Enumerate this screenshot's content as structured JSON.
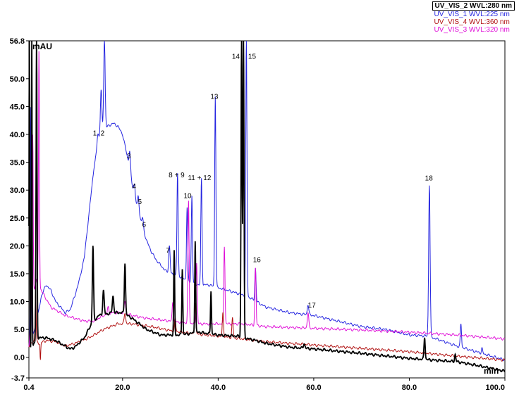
{
  "chart_data": {
    "type": "line",
    "xlabel": "min",
    "ylabel": "mAU",
    "xlim": [
      0.4,
      100.0
    ],
    "ylim": [
      -3.7,
      56.8
    ],
    "x_ticks": [
      "0.4",
      "20.0",
      "40.0",
      "60.0",
      "80.0",
      "100.0"
    ],
    "x_tick_values": [
      0.4,
      20,
      40,
      60,
      80,
      100
    ],
    "y_ticks": [
      "56.8",
      "50.0",
      "45.0",
      "40.0",
      "35.0",
      "30.0",
      "25.0",
      "20.0",
      "15.0",
      "10.0",
      "5.0",
      "0.0",
      "-3.7"
    ],
    "y_tick_values": [
      56.8,
      50,
      45,
      40,
      35,
      30,
      25,
      20,
      15,
      10,
      5,
      0,
      -3.7
    ],
    "legend": [
      {
        "name": "UV_VIS_2 WVL:280 nm",
        "color": "#000000",
        "bold": true
      },
      {
        "name": "UV_VIS_1 WVL:225 nm",
        "color": "#2424e0",
        "bold": false
      },
      {
        "name": "UV_VIS_4 WVL:360 nm",
        "color": "#b01010",
        "bold": false
      },
      {
        "name": "UV_VIS_3 WVL:320 nm",
        "color": "#e010d8",
        "bold": false
      }
    ],
    "series": [
      {
        "name": "UV_VIS_1 WVL:225 nm",
        "color": "#2424e0",
        "baseline": [
          [
            0.4,
            2
          ],
          [
            1.2,
            4
          ],
          [
            2,
            6
          ],
          [
            3,
            11
          ],
          [
            4,
            13
          ],
          [
            5,
            12
          ],
          [
            6,
            10
          ],
          [
            7,
            9
          ],
          [
            8,
            8
          ],
          [
            9,
            8.5
          ],
          [
            10,
            11
          ],
          [
            11,
            14
          ],
          [
            12,
            18
          ],
          [
            13,
            26
          ],
          [
            14,
            34
          ],
          [
            15,
            39
          ],
          [
            16,
            41
          ],
          [
            17,
            41.5
          ],
          [
            18,
            42
          ],
          [
            19,
            41.5
          ],
          [
            20,
            40
          ],
          [
            21,
            36
          ],
          [
            22,
            31
          ],
          [
            23,
            27
          ],
          [
            24,
            24
          ],
          [
            25,
            21
          ],
          [
            26,
            19
          ],
          [
            27,
            17.5
          ],
          [
            28,
            16.5
          ],
          [
            29,
            15.5
          ],
          [
            30,
            15
          ],
          [
            32,
            14.5
          ],
          [
            34,
            13.5
          ],
          [
            36,
            13
          ],
          [
            38,
            13
          ],
          [
            40,
            12.5
          ],
          [
            42,
            12
          ],
          [
            44,
            11.5
          ],
          [
            46,
            11
          ],
          [
            48,
            10
          ],
          [
            50,
            9
          ],
          [
            55,
            8
          ],
          [
            60,
            7.5
          ],
          [
            65,
            6.5
          ],
          [
            70,
            5.5
          ],
          [
            75,
            5
          ],
          [
            80,
            4
          ],
          [
            84,
            3.8
          ],
          [
            86,
            3.2
          ],
          [
            88,
            2.6
          ],
          [
            90,
            2
          ],
          [
            92,
            1.5
          ],
          [
            94,
            1
          ],
          [
            96,
            0.5
          ],
          [
            98,
            0
          ],
          [
            100,
            -0.5
          ]
        ],
        "peaks": [
          [
            0.8,
            45,
            0.2
          ],
          [
            2.0,
            50,
            0.2
          ],
          [
            14.8,
            40,
            0.3
          ],
          [
            15.5,
            48,
            0.3
          ],
          [
            16.2,
            57,
            0.3
          ],
          [
            21.5,
            37,
            0.3
          ],
          [
            22.5,
            31,
            0.3
          ],
          [
            23.3,
            29,
            0.3
          ],
          [
            24.2,
            25,
            0.3
          ],
          [
            29.8,
            20,
            0.3
          ],
          [
            31.5,
            33,
            0.25
          ],
          [
            33.5,
            27,
            0.25
          ],
          [
            34.5,
            29,
            0.25
          ],
          [
            36.5,
            32,
            0.25
          ],
          [
            39.4,
            47,
            0.25
          ],
          [
            45.9,
            57,
            0.25
          ],
          [
            47.8,
            16,
            0.25
          ],
          [
            58.8,
            9.5,
            0.3
          ],
          [
            84.2,
            31,
            0.3
          ],
          [
            90.8,
            6,
            0.25
          ],
          [
            95.2,
            1.6,
            0.25
          ]
        ]
      },
      {
        "name": "UV_VIS_3 WVL:320 nm",
        "color": "#e010d8",
        "baseline": [
          [
            0.4,
            2
          ],
          [
            1,
            10
          ],
          [
            2,
            14
          ],
          [
            3,
            12
          ],
          [
            5,
            9
          ],
          [
            8,
            7.5
          ],
          [
            12,
            6.5
          ],
          [
            14,
            6.5
          ],
          [
            16,
            7.5
          ],
          [
            18,
            8
          ],
          [
            20,
            8
          ],
          [
            22,
            7.5
          ],
          [
            25,
            7
          ],
          [
            30,
            6.5
          ],
          [
            35,
            6
          ],
          [
            40,
            6
          ],
          [
            45,
            6
          ],
          [
            50,
            5.5
          ],
          [
            60,
            5.2
          ],
          [
            70,
            4.9
          ],
          [
            80,
            4.5
          ],
          [
            90,
            4
          ],
          [
            100,
            3.3
          ]
        ],
        "peaks": [
          [
            1.2,
            40,
            0.2
          ],
          [
            2.5,
            55,
            0.2
          ],
          [
            17,
            9,
            0.3
          ],
          [
            20.5,
            10,
            0.3
          ],
          [
            30.5,
            10,
            0.25
          ],
          [
            33.8,
            28,
            0.25
          ],
          [
            35.5,
            17,
            0.25
          ],
          [
            41.3,
            20,
            0.25
          ],
          [
            47.8,
            16,
            0.25
          ],
          [
            58.8,
            8,
            0.3
          ]
        ]
      },
      {
        "name": "UV_VIS_4 WVL:360 nm",
        "color": "#b01010",
        "baseline": [
          [
            0.4,
            2
          ],
          [
            1.5,
            3
          ],
          [
            2.5,
            2.5
          ],
          [
            4,
            3
          ],
          [
            6,
            2.8
          ],
          [
            8,
            2
          ],
          [
            10,
            2.5
          ],
          [
            13,
            3.5
          ],
          [
            16,
            5
          ],
          [
            19,
            6
          ],
          [
            22,
            6
          ],
          [
            26,
            5.5
          ],
          [
            30,
            4.8
          ],
          [
            35,
            4.2
          ],
          [
            40,
            3.8
          ],
          [
            45,
            3.3
          ],
          [
            50,
            2.8
          ],
          [
            60,
            2.2
          ],
          [
            70,
            1.6
          ],
          [
            80,
            1
          ],
          [
            90,
            0.2
          ],
          [
            100,
            -0.5
          ]
        ],
        "peaks": [
          [
            1.8,
            12,
            0.2
          ],
          [
            2.8,
            -0.5,
            0.15
          ],
          [
            20.5,
            8,
            0.3
          ],
          [
            31,
            7,
            0.25
          ],
          [
            35.2,
            10,
            0.25
          ],
          [
            41,
            8,
            0.25
          ],
          [
            43,
            7,
            0.25
          ]
        ]
      },
      {
        "name": "UV_VIS_2 WVL:280 nm",
        "color": "#000000",
        "baseline": [
          [
            0.4,
            0.5
          ],
          [
            2,
            3.5
          ],
          [
            4,
            3.5
          ],
          [
            6,
            3
          ],
          [
            8,
            2
          ],
          [
            9,
            1.5
          ],
          [
            10,
            1.8
          ],
          [
            12,
            3.5
          ],
          [
            13.5,
            6
          ],
          [
            15,
            7.5
          ],
          [
            18,
            8
          ],
          [
            20,
            8
          ],
          [
            22,
            7
          ],
          [
            25,
            5
          ],
          [
            28,
            4
          ],
          [
            32,
            4
          ],
          [
            36,
            4.5
          ],
          [
            40,
            4
          ],
          [
            44,
            3.8
          ],
          [
            48,
            3
          ],
          [
            50,
            2.5
          ],
          [
            55,
            1.8
          ],
          [
            60,
            1.5
          ],
          [
            70,
            0.7
          ],
          [
            80,
            -0.2
          ],
          [
            90,
            -0.8
          ],
          [
            95,
            -1.6
          ],
          [
            100,
            -2.5
          ]
        ],
        "peaks": [
          [
            0.5,
            57,
            0.15
          ],
          [
            1.0,
            57,
            0.15
          ],
          [
            2.0,
            57,
            0.2
          ],
          [
            13.8,
            20,
            0.25
          ],
          [
            16,
            12,
            0.3
          ],
          [
            18,
            11,
            0.3
          ],
          [
            20.5,
            17,
            0.25
          ],
          [
            30.8,
            19,
            0.2
          ],
          [
            32.5,
            16,
            0.2
          ],
          [
            35.2,
            21,
            0.2
          ],
          [
            38.5,
            12,
            0.2
          ],
          [
            44.9,
            57,
            0.22
          ],
          [
            45.3,
            57,
            0.22
          ],
          [
            58,
            2.5,
            0.3
          ],
          [
            83.2,
            3.7,
            0.25
          ],
          [
            89.6,
            0.5,
            0.25
          ]
        ]
      }
    ],
    "annotations": [
      {
        "label": "1",
        "x": 14.2,
        "y": 39.8
      },
      {
        "label": "2",
        "x": 15.8,
        "y": 39.8
      },
      {
        "label": "3",
        "x": 21.3,
        "y": 35.7
      },
      {
        "label": "4",
        "x": 22.4,
        "y": 30.3
      },
      {
        "label": "5",
        "x": 23.6,
        "y": 27.5
      },
      {
        "label": "6",
        "x": 24.5,
        "y": 23.4
      },
      {
        "label": "7",
        "x": 29.5,
        "y": 18.8
      },
      {
        "label": "8 + 9",
        "x": 31.3,
        "y": 32.3
      },
      {
        "label": "10",
        "x": 33.6,
        "y": 28.6
      },
      {
        "label": "11 + 12",
        "x": 36.1,
        "y": 31.8
      },
      {
        "label": "13",
        "x": 39.2,
        "y": 46.4
      },
      {
        "label": "14",
        "x": 43.7,
        "y": 53.6
      },
      {
        "label": "15",
        "x": 47.1,
        "y": 53.6
      },
      {
        "label": "16",
        "x": 48.1,
        "y": 17.1
      },
      {
        "label": "17",
        "x": 59.6,
        "y": 8.9
      },
      {
        "label": "18",
        "x": 84.1,
        "y": 31.7
      }
    ]
  }
}
